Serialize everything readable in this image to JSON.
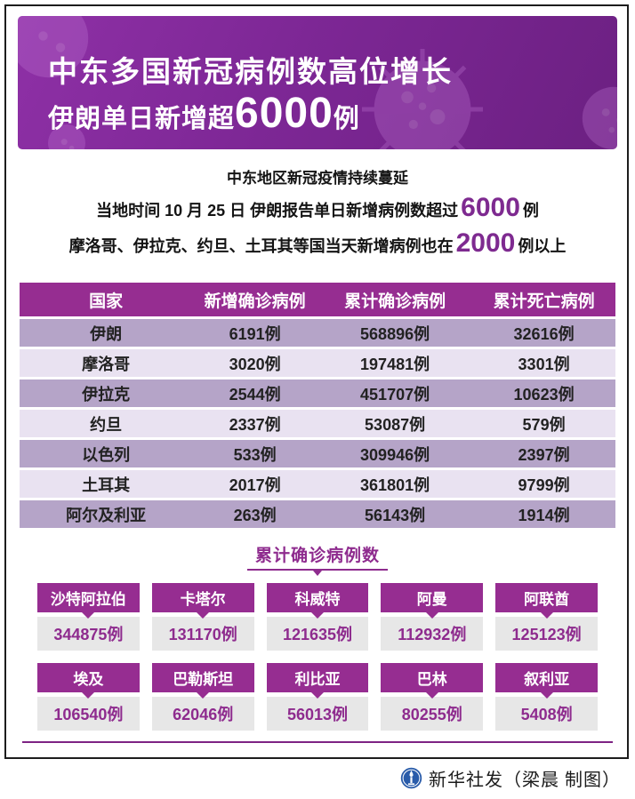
{
  "banner": {
    "title_line1": "中东多国新冠病例数高位增长",
    "title_line2_prefix": "伊朗单日新增超",
    "title_line2_number": "6000",
    "title_line2_suffix": "例"
  },
  "intro": {
    "line1": "中东地区新冠疫情持续蔓延",
    "line2_prefix": "当地时间 10 月 25 日 伊朗报告单日新增病例数超过",
    "line2_number": "6000",
    "line2_suffix": "例",
    "line3_prefix": "摩洛哥、伊拉克、约旦、土耳其等国当天新增病例也在",
    "line3_number": "2000",
    "line3_suffix": "例以上"
  },
  "table": {
    "headers": [
      "国家",
      "新增确诊病例",
      "累计确诊病例",
      "累计死亡病例"
    ],
    "rows": [
      [
        "伊朗",
        "6191例",
        "568896例",
        "32616例"
      ],
      [
        "摩洛哥",
        "3020例",
        "197481例",
        "3301例"
      ],
      [
        "伊拉克",
        "2544例",
        "451707例",
        "10623例"
      ],
      [
        "约旦",
        "2337例",
        "53087例",
        "579例"
      ],
      [
        "以色列",
        "533例",
        "309946例",
        "2397例"
      ],
      [
        "土耳其",
        "2017例",
        "361801例",
        "9799例"
      ],
      [
        "阿尔及利亚",
        "263例",
        "56143例",
        "1914例"
      ]
    ]
  },
  "cards_section": {
    "title": "累计确诊病例数",
    "cards": [
      {
        "country": "沙特阿拉伯",
        "value": "344875例"
      },
      {
        "country": "卡塔尔",
        "value": "131170例"
      },
      {
        "country": "科威特",
        "value": "121635例"
      },
      {
        "country": "阿曼",
        "value": "112932例"
      },
      {
        "country": "阿联酋",
        "value": "125123例"
      },
      {
        "country": "埃及",
        "value": "106540例"
      },
      {
        "country": "巴勒斯坦",
        "value": "62046例"
      },
      {
        "country": "利比亚",
        "value": "56013例"
      },
      {
        "country": "巴林",
        "value": "80255例"
      },
      {
        "country": "叙利亚",
        "value": "5408例"
      }
    ]
  },
  "footer": {
    "credit": "新华社发（梁晨 制图）"
  },
  "colors": {
    "banner_purple": "#7d2795",
    "table_header_purple": "#962d91",
    "row_dark": "#b5a4c8",
    "row_light": "#e9e2f1",
    "accent_purple": "#8e2b8e",
    "card_body_gray": "#e7e7e7",
    "logo_blue": "#2a5caa"
  },
  "chart_data": [
    {
      "type": "table",
      "columns": [
        "国家",
        "新增确诊病例",
        "累计确诊病例",
        "累计死亡病例"
      ],
      "rows": [
        {
          "country": "伊朗",
          "new_cases": 6191,
          "total_cases": 568896,
          "deaths": 32616
        },
        {
          "country": "摩洛哥",
          "new_cases": 3020,
          "total_cases": 197481,
          "deaths": 3301
        },
        {
          "country": "伊拉克",
          "new_cases": 2544,
          "total_cases": 451707,
          "deaths": 10623
        },
        {
          "country": "约旦",
          "new_cases": 2337,
          "total_cases": 53087,
          "deaths": 579
        },
        {
          "country": "以色列",
          "new_cases": 533,
          "total_cases": 309946,
          "deaths": 2397
        },
        {
          "country": "土耳其",
          "new_cases": 2017,
          "total_cases": 361801,
          "deaths": 9799
        },
        {
          "country": "阿尔及利亚",
          "new_cases": 263,
          "total_cases": 56143,
          "deaths": 1914
        }
      ]
    },
    {
      "type": "table",
      "title": "累计确诊病例数",
      "columns": [
        "国家",
        "累计确诊病例数"
      ],
      "rows": [
        {
          "country": "沙特阿拉伯",
          "total_cases": 344875
        },
        {
          "country": "卡塔尔",
          "total_cases": 131170
        },
        {
          "country": "科威特",
          "total_cases": 121635
        },
        {
          "country": "阿曼",
          "total_cases": 112932
        },
        {
          "country": "阿联酋",
          "total_cases": 125123
        },
        {
          "country": "埃及",
          "total_cases": 106540
        },
        {
          "country": "巴勒斯坦",
          "total_cases": 62046
        },
        {
          "country": "利比亚",
          "total_cases": 56013
        },
        {
          "country": "巴林",
          "total_cases": 80255
        },
        {
          "country": "叙利亚",
          "total_cases": 5408
        }
      ]
    }
  ]
}
